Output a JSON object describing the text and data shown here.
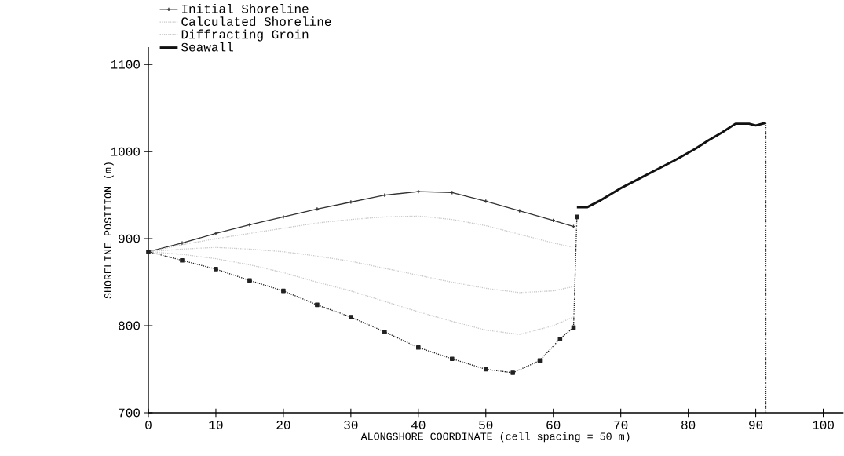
{
  "chart_data": {
    "type": "line",
    "xlabel": "ALONGSHORE COORDINATE (cell spacing = 50 m)",
    "ylabel": "SHORELINE POSITION (m)",
    "xlim": [
      0,
      103
    ],
    "ylim": [
      700,
      1120
    ],
    "xticks": [
      0,
      10,
      20,
      30,
      40,
      50,
      60,
      70,
      80,
      90,
      100
    ],
    "yticks": [
      700,
      800,
      900,
      1000,
      1100
    ],
    "grid": false,
    "legend": "top left",
    "series": [
      {
        "name": "Initial Shoreline",
        "color": "#333333",
        "marker": "cross",
        "line_style": "solid",
        "x": [
          0,
          5,
          10,
          15,
          20,
          25,
          30,
          35,
          40,
          45,
          50,
          55,
          60,
          63
        ],
        "values": [
          885,
          895,
          906,
          916,
          925,
          934,
          942,
          950,
          954,
          953,
          943,
          932,
          921,
          914
        ]
      },
      {
        "name": "Calculated Shoreline",
        "color": "#c8c8c8",
        "marker": "none",
        "line_style": "dotted",
        "x": [
          0,
          5,
          10,
          15,
          20,
          25,
          30,
          35,
          40,
          45,
          50,
          55,
          60,
          63
        ],
        "values": [
          885,
          893,
          900,
          906,
          912,
          918,
          922,
          925,
          926,
          922,
          915,
          905,
          895,
          890
        ]
      },
      {
        "color": "#c8c8c8",
        "marker": "none",
        "line_style": "dotted",
        "x": [
          0,
          5,
          10,
          15,
          20,
          25,
          30,
          35,
          40,
          45,
          50,
          55,
          60,
          63
        ],
        "values": [
          885,
          888,
          890,
          888,
          885,
          880,
          874,
          866,
          858,
          850,
          843,
          838,
          840,
          845
        ]
      },
      {
        "color": "#c8c8c8",
        "marker": "none",
        "line_style": "dotted",
        "x": [
          0,
          5,
          10,
          15,
          20,
          25,
          30,
          35,
          40,
          45,
          50,
          55,
          60,
          63
        ],
        "values": [
          885,
          882,
          877,
          870,
          861,
          850,
          840,
          828,
          816,
          805,
          795,
          790,
          800,
          810
        ]
      },
      {
        "color": "#222222",
        "marker": "square",
        "line_style": "dotted",
        "x": [
          0,
          5,
          10,
          15,
          20,
          25,
          30,
          35,
          40,
          45,
          50,
          54,
          58,
          61,
          63,
          63.5
        ],
        "values": [
          885,
          875,
          865,
          852,
          840,
          824,
          810,
          793,
          775,
          762,
          750,
          746,
          760,
          785,
          798,
          925
        ]
      },
      {
        "name": "Diffracting Groin",
        "color": "#222222",
        "marker": "none",
        "line_style": "dotted",
        "x": [
          91.5,
          91.5
        ],
        "values": [
          700,
          1033
        ]
      },
      {
        "name": "Seawall",
        "color": "#111111",
        "marker": "none",
        "line_style": "solid",
        "x": [
          63.5,
          65,
          67,
          70,
          72,
          75,
          78,
          81,
          83,
          85,
          87,
          89,
          90,
          91.5
        ],
        "values": [
          936,
          936,
          944,
          958,
          966,
          978,
          990,
          1003,
          1013,
          1022,
          1032,
          1032,
          1030,
          1033
        ]
      }
    ]
  }
}
